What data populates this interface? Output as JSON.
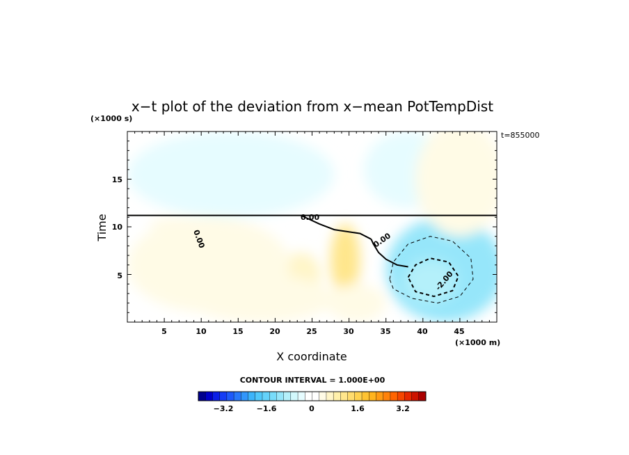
{
  "chart_data": {
    "type": "heatmap",
    "title": "x−t plot of the deviation from x−mean PotTempDist",
    "xlabel": "X coordinate",
    "ylabel": "Time",
    "x_unit": "(×1000 m)",
    "y_unit": "(×1000 s)",
    "time_stamp": "t=855000",
    "xlim": [
      0,
      50
    ],
    "ylim": [
      0,
      20
    ],
    "x_ticks": [
      5,
      10,
      15,
      20,
      25,
      30,
      35,
      40,
      45
    ],
    "y_ticks": [
      5,
      10,
      15
    ],
    "x_tick_labels": [
      "5",
      "10",
      "15",
      "20",
      "25",
      "30",
      "35",
      "40",
      "45"
    ],
    "y_tick_labels": [
      "5",
      "10",
      "15"
    ],
    "contour_interval_text": "CONTOUR INTERVAL = 1.000E+00",
    "contour_labels": [
      "0.00",
      "0.00",
      "0.00",
      "-2.00"
    ],
    "colorbar": {
      "min": -4,
      "max": 4,
      "tick_values": [
        -3.2,
        -1.6,
        0,
        1.6,
        3.2
      ],
      "tick_labels": [
        "−3.2",
        "−1.6",
        "0",
        "1.6",
        "3.2"
      ],
      "colors": [
        "#00008c",
        "#0000c8",
        "#0a1ee6",
        "#143cf5",
        "#1e5afa",
        "#2878fa",
        "#3296fa",
        "#3cb4fa",
        "#50c8fa",
        "#64d2fa",
        "#78dcfa",
        "#96e6fa",
        "#b4f0fa",
        "#d2f8fc",
        "#e6fcff",
        "#ffffff",
        "#ffffff",
        "#fffbe6",
        "#fff5c8",
        "#fff0aa",
        "#ffe68c",
        "#ffdc6e",
        "#ffd250",
        "#ffc332",
        "#ffb41e",
        "#ff9b14",
        "#ff820a",
        "#ff6400",
        "#f54600",
        "#e62800",
        "#cd1400",
        "#aa0000"
      ]
    },
    "anomaly_regions": [
      {
        "x": 43,
        "t": 5.5,
        "rx": 8,
        "rt": 5.5,
        "value": -1.2
      },
      {
        "x": 41.5,
        "t": 4.6,
        "rx": 6,
        "rt": 3.7,
        "value": -1.2
      },
      {
        "x": 41,
        "t": 4.3,
        "rx": 3.6,
        "rt": 2.3,
        "value": -0.8
      },
      {
        "x": 14,
        "t": 15.5,
        "rx": 14,
        "rt": 4.5,
        "value": -0.45
      },
      {
        "x": 38,
        "t": 16,
        "rx": 6,
        "rt": 4,
        "value": -0.3
      },
      {
        "x": 45,
        "t": 15,
        "rx": 6,
        "rt": 6,
        "value": 0.45
      },
      {
        "x": 29.5,
        "t": 6.5,
        "rx": 2,
        "rt": 3.8,
        "value": 1.1
      },
      {
        "x": 23.5,
        "t": 4.8,
        "rx": 2.7,
        "rt": 2.5,
        "value": 0.7
      },
      {
        "x": 11,
        "t": 6,
        "rx": 11,
        "rt": 5,
        "value": 0.4
      },
      {
        "x": 8,
        "t": 4.5,
        "rx": 2,
        "rt": 2.5,
        "value": 0.4
      },
      {
        "x": 18,
        "t": 2.5,
        "rx": 10,
        "rt": 2.5,
        "value": 0.3
      },
      {
        "x": 31,
        "t": 2,
        "rx": 4,
        "rt": 2,
        "value": 0.3
      },
      {
        "x": 7,
        "t": 10.2,
        "rx": 4,
        "rt": 0.8,
        "value": 0.35
      }
    ],
    "contour_lines": [
      {
        "level": 0,
        "style": "solid-thick",
        "points": [
          [
            33,
            8.7
          ],
          [
            33.3,
            8.2
          ],
          [
            34,
            7.3
          ],
          [
            35,
            6.6
          ],
          [
            36.5,
            6
          ],
          [
            38,
            5.8
          ]
        ]
      },
      {
        "level": 0,
        "style": "solid-thick",
        "points": [
          [
            33,
            8.7
          ],
          [
            31.5,
            9.3
          ],
          [
            28,
            9.7
          ],
          [
            26,
            10.3
          ],
          [
            23.5,
            11.2
          ]
        ]
      },
      {
        "level": 0,
        "style": "solid-thick",
        "points": [
          [
            0,
            11.2
          ],
          [
            50,
            11.2
          ]
        ]
      },
      {
        "level": -1,
        "style": "dashed-thin",
        "points": [
          [
            35.5,
            4.5
          ],
          [
            36,
            6.3
          ],
          [
            38,
            8.2
          ],
          [
            41,
            9
          ],
          [
            44,
            8.5
          ],
          [
            46.5,
            6.7
          ],
          [
            46.8,
            4.5
          ],
          [
            45,
            2.7
          ],
          [
            42,
            2
          ],
          [
            38.5,
            2.5
          ],
          [
            36,
            3.5
          ],
          [
            35.5,
            4.5
          ]
        ]
      },
      {
        "level": -2,
        "style": "dashed-thick",
        "points": [
          [
            38,
            4.7
          ],
          [
            39,
            6
          ],
          [
            41,
            6.7
          ],
          [
            43.5,
            6.3
          ],
          [
            44.8,
            4.8
          ],
          [
            44,
            3.3
          ],
          [
            41.5,
            2.7
          ],
          [
            39,
            3.2
          ],
          [
            38,
            4.7
          ]
        ]
      }
    ]
  }
}
